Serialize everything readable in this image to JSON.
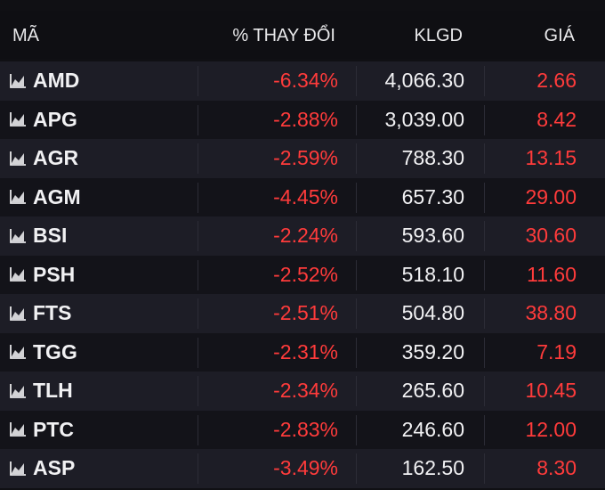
{
  "header": {
    "symbol": "MÃ",
    "change": "% THAY ĐỔI",
    "volume": "KLGD",
    "price": "GIÁ"
  },
  "colors": {
    "down": "#ff3b3b",
    "text": "#f1f1f3",
    "row_odd": "#1d1d26",
    "row_even": "#131319"
  },
  "icon": "line-chart-icon",
  "rows": [
    {
      "symbol": "AMD",
      "change": "-6.34%",
      "volume": "4,066.30",
      "price": "2.66"
    },
    {
      "symbol": "APG",
      "change": "-2.88%",
      "volume": "3,039.00",
      "price": "8.42"
    },
    {
      "symbol": "AGR",
      "change": "-2.59%",
      "volume": "788.30",
      "price": "13.15"
    },
    {
      "symbol": "AGM",
      "change": "-4.45%",
      "volume": "657.30",
      "price": "29.00"
    },
    {
      "symbol": "BSI",
      "change": "-2.24%",
      "volume": "593.60",
      "price": "30.60"
    },
    {
      "symbol": "PSH",
      "change": "-2.52%",
      "volume": "518.10",
      "price": "11.60"
    },
    {
      "symbol": "FTS",
      "change": "-2.51%",
      "volume": "504.80",
      "price": "38.80"
    },
    {
      "symbol": "TGG",
      "change": "-2.31%",
      "volume": "359.20",
      "price": "7.19"
    },
    {
      "symbol": "TLH",
      "change": "-2.34%",
      "volume": "265.60",
      "price": "10.45"
    },
    {
      "symbol": "PTC",
      "change": "-2.83%",
      "volume": "246.60",
      "price": "12.00"
    },
    {
      "symbol": "ASP",
      "change": "-3.49%",
      "volume": "162.50",
      "price": "8.30"
    }
  ]
}
